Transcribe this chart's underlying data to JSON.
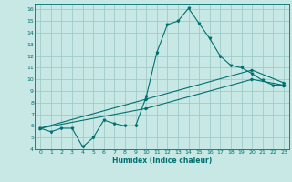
{
  "line1_x": [
    0,
    1,
    2,
    3,
    4,
    5,
    6,
    7,
    8,
    9,
    10,
    11,
    12,
    13,
    14,
    15,
    16,
    17,
    18,
    19,
    20,
    21,
    22,
    23
  ],
  "line1_y": [
    5.8,
    5.5,
    5.8,
    5.8,
    4.2,
    5.0,
    6.5,
    6.2,
    6.0,
    6.0,
    8.5,
    12.3,
    14.7,
    15.0,
    16.1,
    14.8,
    13.5,
    12.0,
    11.2,
    11.0,
    10.5,
    9.9,
    9.5,
    9.5
  ],
  "line2_x": [
    0,
    10,
    20,
    23
  ],
  "line2_y": [
    5.8,
    7.5,
    10.0,
    9.5
  ],
  "line3_x": [
    0,
    10,
    20,
    23
  ],
  "line3_y": [
    5.8,
    8.3,
    10.8,
    9.7
  ],
  "color": "#007070",
  "bg_color": "#c8e8e5",
  "grid_color": "#a0ccc8",
  "xlabel": "Humidex (Indice chaleur)",
  "xlim": [
    -0.5,
    23.5
  ],
  "ylim": [
    4,
    16.5
  ],
  "xticks": [
    0,
    1,
    2,
    3,
    4,
    5,
    6,
    7,
    8,
    9,
    10,
    11,
    12,
    13,
    14,
    15,
    16,
    17,
    18,
    19,
    20,
    21,
    22,
    23
  ],
  "yticks": [
    4,
    5,
    6,
    7,
    8,
    9,
    10,
    11,
    12,
    13,
    14,
    15,
    16
  ]
}
